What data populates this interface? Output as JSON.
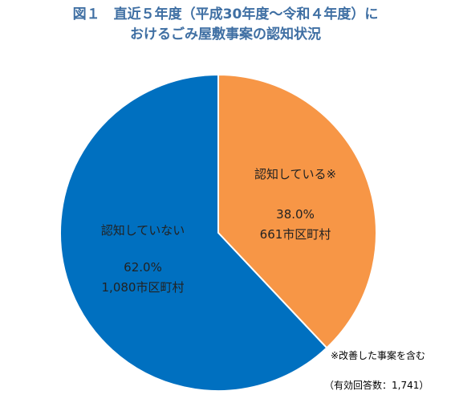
{
  "title_line1": "図１　直近５年度（平成30年度～令和４年度）に",
  "title_line2": "おけるごみ屋敷事案の認知状況",
  "note": "※改善した事案を含む",
  "response_count_note": "（有効回答数：1,741）",
  "chart_data": {
    "type": "pie",
    "title": "図１　直近５年度（平成30年度～令和４年度）におけるごみ屋敷事案の認知状況",
    "slices": [
      {
        "label": "認知している※",
        "percent_label": "38.0%",
        "count_label": "661市区町村",
        "value": 661,
        "percent": 38.0,
        "color": "#f79646"
      },
      {
        "label": "認知していない",
        "percent_label": "62.0%",
        "count_label": "1,080市区町村",
        "value": 1080,
        "percent": 62.0,
        "color": "#0070c0"
      }
    ],
    "start_angle_deg": 0,
    "direction": "clockwise",
    "slice_border_color": "#ffffff"
  }
}
